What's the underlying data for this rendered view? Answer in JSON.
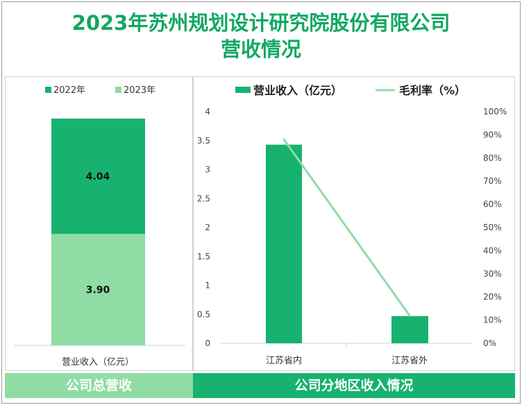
{
  "title": {
    "line1": "2023年苏州规划设计研究院股份有限公司",
    "line2": "营收情况"
  },
  "colors": {
    "title": "#10a862",
    "dark_green": "#17b26f",
    "light_green": "#8fdca4",
    "footer_left": "#8fdca4",
    "footer_right": "#17b26f"
  },
  "footer": {
    "left": "公司总营收",
    "right": "公司分地区收入情况"
  },
  "chart_data": [
    {
      "type": "bar",
      "stacked": true,
      "categories": [
        "营业收入（亿元）"
      ],
      "series": [
        {
          "name": "2022年",
          "values": [
            4.04
          ],
          "color": "#17b26f"
        },
        {
          "name": "2023年",
          "values": [
            3.9
          ],
          "color": "#8fdca4"
        }
      ],
      "data_labels": [
        "4.04",
        "3.90"
      ],
      "legend": "top"
    },
    {
      "type": "bar",
      "categories": [
        "江苏省内",
        "江苏省外"
      ],
      "series": [
        {
          "name": "营业收入（亿元）",
          "type": "bar",
          "values": [
            3.43,
            0.47
          ],
          "axis": "left",
          "color": "#17b26f"
        },
        {
          "name": "毛利率（%）",
          "type": "line",
          "values": [
            88,
            12
          ],
          "axis": "right",
          "color": "#8fdca4"
        }
      ],
      "ylim": [
        0,
        4
      ],
      "y_ticks": [
        "0",
        "0.5",
        "1",
        "1.5",
        "2",
        "2.5",
        "3",
        "3.5",
        "4"
      ],
      "y2lim": [
        0,
        100
      ],
      "y2_ticks": [
        "0%",
        "10%",
        "20%",
        "30%",
        "40%",
        "50%",
        "60%",
        "70%",
        "80%",
        "90%",
        "100%"
      ],
      "legend": "top"
    }
  ]
}
